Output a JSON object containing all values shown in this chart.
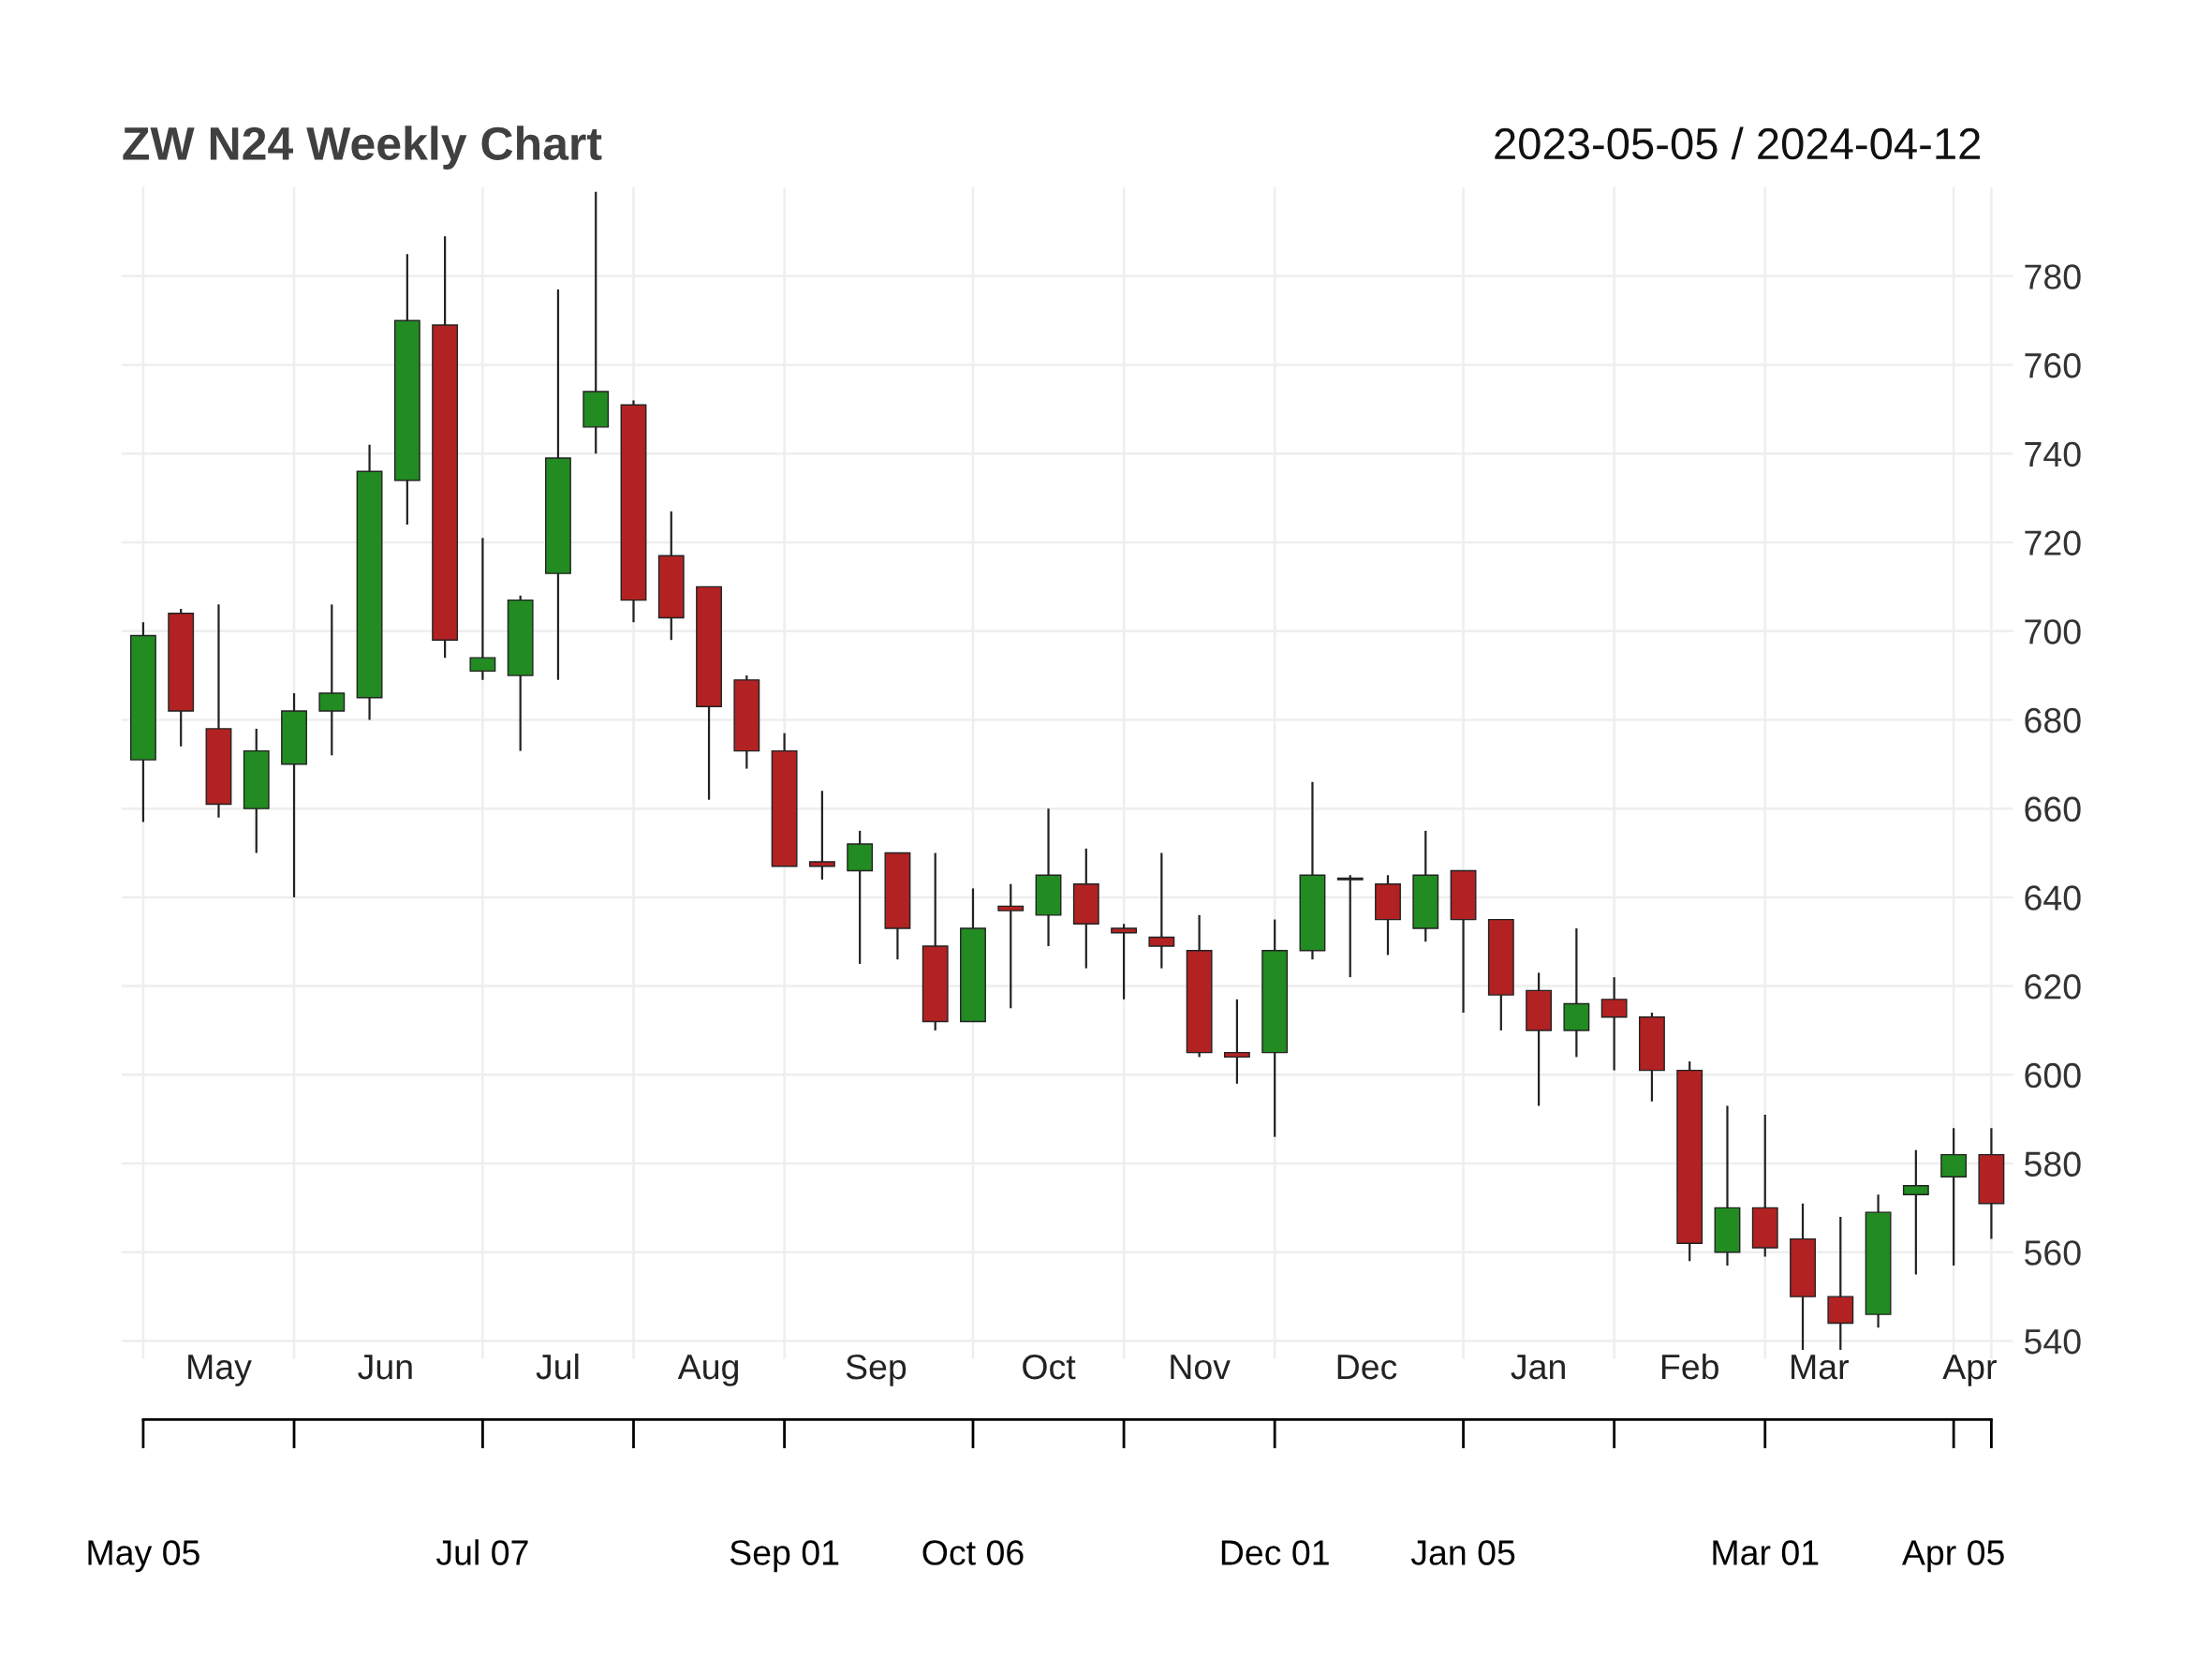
{
  "chart_data": {
    "type": "candlestick",
    "title": "ZW N24 Weekly Chart",
    "subtitle": "2023-05-05 / 2024-04-12",
    "x": [
      "2023-05-05",
      "2023-05-12",
      "2023-05-19",
      "2023-05-26",
      "2023-06-02",
      "2023-06-09",
      "2023-06-16",
      "2023-06-23",
      "2023-06-30",
      "2023-07-07",
      "2023-07-14",
      "2023-07-21",
      "2023-07-28",
      "2023-08-04",
      "2023-08-11",
      "2023-08-18",
      "2023-08-25",
      "2023-09-01",
      "2023-09-08",
      "2023-09-15",
      "2023-09-22",
      "2023-09-29",
      "2023-10-06",
      "2023-10-13",
      "2023-10-20",
      "2023-10-27",
      "2023-11-03",
      "2023-11-10",
      "2023-11-17",
      "2023-11-24",
      "2023-12-01",
      "2023-12-08",
      "2023-12-15",
      "2023-12-22",
      "2023-12-29",
      "2024-01-05",
      "2024-01-12",
      "2024-01-19",
      "2024-01-26",
      "2024-02-02",
      "2024-02-09",
      "2024-02-16",
      "2024-02-23",
      "2024-03-01",
      "2024-03-08",
      "2024-03-15",
      "2024-03-22",
      "2024-03-29",
      "2024-04-05",
      "2024-04-12"
    ],
    "ohlc": [
      [
        671,
        702,
        657,
        699
      ],
      [
        704,
        705,
        674,
        682
      ],
      [
        678,
        706,
        658,
        661
      ],
      [
        660,
        678,
        650,
        673
      ],
      [
        670,
        686,
        640,
        682
      ],
      [
        682,
        706,
        672,
        686
      ],
      [
        685,
        742,
        680,
        736
      ],
      [
        734,
        785,
        724,
        770
      ],
      [
        769,
        789,
        694,
        698
      ],
      [
        691,
        721,
        689,
        694
      ],
      [
        690,
        708,
        673,
        707
      ],
      [
        713,
        777,
        689,
        739
      ],
      [
        746,
        799,
        740,
        754
      ],
      [
        751,
        752,
        702,
        707
      ],
      [
        717,
        727,
        698,
        703
      ],
      [
        710,
        710,
        662,
        683
      ],
      [
        689,
        690,
        669,
        673
      ],
      [
        673,
        677,
        647,
        647
      ],
      [
        648,
        664,
        644,
        647
      ],
      [
        646,
        655,
        625,
        652
      ],
      [
        650,
        650,
        626,
        633
      ],
      [
        629,
        650,
        610,
        612
      ],
      [
        612,
        642,
        612,
        633
      ],
      [
        638,
        643,
        615,
        637
      ],
      [
        636,
        660,
        629,
        645
      ],
      [
        643,
        651,
        624,
        634
      ],
      [
        633,
        634,
        617,
        632
      ],
      [
        631,
        650,
        624,
        629
      ],
      [
        628,
        636,
        604,
        605
      ],
      [
        605,
        617,
        598,
        604
      ],
      [
        605,
        635,
        586,
        628
      ],
      [
        628,
        666,
        626,
        645
      ],
      [
        644,
        645,
        622,
        644
      ],
      [
        643,
        645,
        627,
        635
      ],
      [
        633,
        655,
        630,
        645
      ],
      [
        646,
        646,
        614,
        635
      ],
      [
        635,
        635,
        610,
        618
      ],
      [
        619,
        623,
        593,
        610
      ],
      [
        610,
        633,
        604,
        616
      ],
      [
        617,
        622,
        601,
        613
      ],
      [
        613,
        614,
        594,
        601
      ],
      [
        601,
        603,
        558,
        562
      ],
      [
        560,
        593,
        557,
        570
      ],
      [
        570,
        591,
        559,
        561
      ],
      [
        563,
        571,
        538,
        550
      ],
      [
        550,
        568,
        538,
        544
      ],
      [
        546,
        573,
        543,
        569
      ],
      [
        573,
        583,
        555,
        575
      ],
      [
        577,
        588,
        557,
        582
      ],
      [
        582,
        588,
        563,
        571
      ]
    ],
    "colors": [
      "#228b22",
      "#b22222",
      "#b22222",
      "#228b22",
      "#228b22",
      "#228b22",
      "#228b22",
      "#228b22",
      "#b22222",
      "#228b22",
      "#228b22",
      "#228b22",
      "#228b22",
      "#b22222",
      "#b22222",
      "#b22222",
      "#b22222",
      "#b22222",
      "#b22222",
      "#228b22",
      "#b22222",
      "#b22222",
      "#228b22",
      "#b22222",
      "#228b22",
      "#b22222",
      "#b22222",
      "#b22222",
      "#b22222",
      "#b22222",
      "#228b22",
      "#228b22",
      "#b22222",
      "#b22222",
      "#228b22",
      "#b22222",
      "#b22222",
      "#b22222",
      "#228b22",
      "#b22222",
      "#b22222",
      "#b22222",
      "#228b22",
      "#b22222",
      "#b22222",
      "#b22222",
      "#228b22",
      "#228b22",
      "#228b22",
      "#b22222"
    ],
    "xlim": [
      "2023-05-01",
      "2024-04-16"
    ],
    "xticks": [
      {
        "value": "2023-05-19",
        "label": "May"
      },
      {
        "value": "2023-06-19",
        "label": "Jun"
      },
      {
        "value": "2023-07-21",
        "label": "Jul"
      },
      {
        "value": "2023-08-18",
        "label": "Aug"
      },
      {
        "value": "2023-09-18",
        "label": "Sep"
      },
      {
        "value": "2023-10-20",
        "label": "Oct"
      },
      {
        "value": "2023-11-17",
        "label": "Nov"
      },
      {
        "value": "2023-12-18",
        "label": "Dec"
      },
      {
        "value": "2024-01-19",
        "label": "Jan"
      },
      {
        "value": "2024-02-16",
        "label": "Feb"
      },
      {
        "value": "2024-03-11",
        "label": "Mar"
      },
      {
        "value": "2024-04-08",
        "label": "Apr"
      }
    ],
    "x2lim": [
      "2023-05-01",
      "2024-04-16"
    ],
    "x2ticks": [
      {
        "value": "2023-05-05",
        "label": "May 05"
      },
      {
        "value": "2023-06-02",
        "label": null
      },
      {
        "value": "2023-07-07",
        "label": "Jul 07"
      },
      {
        "value": "2023-08-04",
        "label": null
      },
      {
        "value": "2023-09-01",
        "label": "Sep 01"
      },
      {
        "value": "2023-10-06",
        "label": "Oct 06"
      },
      {
        "value": "2023-11-03",
        "label": null
      },
      {
        "value": "2023-12-01",
        "label": "Dec 01"
      },
      {
        "value": "2024-01-05",
        "label": "Jan 05"
      },
      {
        "value": "2024-02-02",
        "label": null
      },
      {
        "value": "2024-03-01",
        "label": "Mar 01"
      },
      {
        "value": "2024-04-05",
        "label": "Apr 05"
      },
      {
        "value": "2024-04-12",
        "label": null
      }
    ],
    "ylim": [
      536,
      800
    ],
    "yticks": [
      540,
      560,
      580,
      600,
      620,
      640,
      660,
      680,
      700,
      720,
      740,
      760,
      780
    ],
    "grid": true
  }
}
